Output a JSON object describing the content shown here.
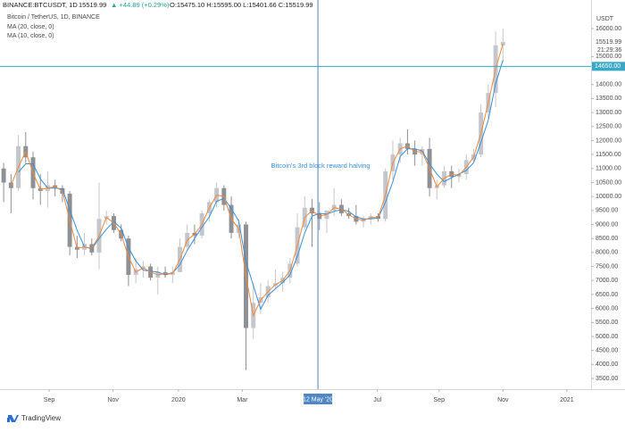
{
  "header": {
    "symbol": "BINANCE:BTCUSDT, 1D",
    "price": "15519.99",
    "change": "▲ +44.89 (+0.29%)",
    "ohlc": "O:15475.10 H:15595.00 L:15401.66 C:15519.99"
  },
  "chart_data": {
    "type": "candlestick",
    "title": "Bitcoin / TetherUS, 1D, BINANCE",
    "currency": "USDT",
    "up_color": "#c4c6cc",
    "down_color": "#8e9096",
    "open": [
      11000,
      10500,
      10300,
      11800,
      11400,
      10300,
      10200,
      10400,
      10300,
      10100,
      8200,
      8100,
      8300,
      8000,
      9200,
      9300,
      8800,
      8500,
      7200,
      7400,
      7500,
      7100,
      7300,
      7200,
      7300,
      8200,
      8700,
      8600,
      9400,
      9800,
      10300,
      9700,
      8700,
      9000,
      5300,
      6200,
      6400,
      6800,
      6900,
      7100,
      7600,
      8900,
      9600,
      9400,
      9200,
      9500,
      9700,
      9400,
      9300,
      9100,
      9200,
      9300,
      9200,
      10900,
      11500,
      11900,
      11700,
      11500,
      11700,
      10300,
      10400,
      10900,
      10700,
      10800,
      11300,
      11500,
      13000,
      13700,
      15400
    ],
    "high": [
      11200,
      10800,
      12200,
      12300,
      11600,
      10800,
      10900,
      10600,
      10400,
      10200,
      8600,
      8700,
      8500,
      10500,
      9500,
      9400,
      9000,
      8600,
      7800,
      7700,
      7600,
      7500,
      7500,
      7500,
      8500,
      9000,
      9000,
      9500,
      9900,
      10500,
      10400,
      10000,
      9200,
      9100,
      6900,
      6900,
      7000,
      7400,
      7300,
      7800,
      9400,
      10000,
      9900,
      9800,
      9500,
      10300,
      9900,
      9600,
      9700,
      9300,
      9400,
      9400,
      11000,
      12000,
      12100,
      12400,
      12000,
      11800,
      12100,
      10600,
      11100,
      11100,
      11000,
      11500,
      11700,
      13300,
      14000,
      15900,
      16000
    ],
    "low": [
      9800,
      9400,
      10200,
      11200,
      9900,
      9700,
      9600,
      10000,
      9800,
      7900,
      7800,
      7900,
      7900,
      7400,
      9000,
      8700,
      8400,
      6800,
      6900,
      7100,
      7000,
      6500,
      7100,
      6900,
      7300,
      8100,
      8300,
      8500,
      9100,
      9600,
      9500,
      8500,
      8500,
      3800,
      4900,
      5800,
      6200,
      6700,
      6600,
      6900,
      7500,
      8800,
      8200,
      8800,
      8700,
      9300,
      9300,
      9200,
      9000,
      8900,
      9000,
      9100,
      9100,
      10600,
      11200,
      11500,
      11100,
      11100,
      10000,
      9900,
      10300,
      10300,
      10500,
      10600,
      11200,
      11400,
      12800,
      13200,
      14800
    ],
    "close": [
      10500,
      10300,
      11800,
      11400,
      10300,
      10200,
      10400,
      10300,
      10100,
      8200,
      8100,
      8300,
      8000,
      9200,
      9300,
      8800,
      8500,
      7200,
      7400,
      7500,
      7100,
      7300,
      7200,
      7300,
      8200,
      8700,
      8600,
      9400,
      9800,
      10300,
      9700,
      8700,
      9000,
      5300,
      6200,
      6400,
      6800,
      6900,
      7100,
      7600,
      8900,
      9600,
      9400,
      9200,
      9500,
      9700,
      9400,
      9300,
      9100,
      9200,
      9300,
      9200,
      10900,
      11500,
      11900,
      11700,
      11500,
      11700,
      10300,
      10400,
      10900,
      10700,
      10800,
      11300,
      11500,
      13000,
      13700,
      15400,
      15520
    ],
    "series": [
      {
        "name": "MA (20, close, 0)",
        "color": "#3a8fd8",
        "values": [
          null,
          null,
          10870,
          11170,
          11170,
          10630,
          10300,
          10300,
          10270,
          9530,
          8800,
          8200,
          8130,
          8500,
          8830,
          9100,
          8870,
          8170,
          7700,
          7370,
          7330,
          7300,
          7200,
          7270,
          7570,
          8070,
          8500,
          8900,
          9270,
          9830,
          9930,
          9570,
          9130,
          7670,
          6830,
          5970,
          6470,
          6700,
          6930,
          7200,
          7870,
          8700,
          9300,
          9400,
          9370,
          9470,
          9530,
          9470,
          9270,
          9200,
          9200,
          9230,
          9800,
          10530,
          11430,
          11700,
          11700,
          11630,
          11170,
          10800,
          10530,
          10670,
          10800,
          10930,
          11200,
          11930,
          12730,
          14030,
          14870
        ]
      },
      {
        "name": "MA (10, close, 0)",
        "color": "#f0883a",
        "values": [
          null,
          10400,
          11050,
          11600,
          10850,
          10250,
          10300,
          10350,
          10200,
          9150,
          8150,
          8200,
          8150,
          8600,
          9250,
          9050,
          8650,
          7850,
          7300,
          7450,
          7300,
          7200,
          7250,
          7250,
          7750,
          8450,
          8650,
          9000,
          9600,
          10050,
          10000,
          9200,
          8850,
          7150,
          5750,
          6300,
          6600,
          6850,
          7000,
          7350,
          8250,
          9250,
          9500,
          9300,
          9350,
          9600,
          9550,
          9350,
          9200,
          9150,
          9250,
          9250,
          10050,
          11200,
          11700,
          11800,
          11600,
          11600,
          11000,
          10350,
          10650,
          10800,
          10750,
          11050,
          11400,
          12250,
          13350,
          14550,
          15460
        ]
      }
    ],
    "xlim": [
      -0.5,
      80
    ],
    "xticks": [
      {
        "value": 6.2,
        "label": "Sep"
      },
      {
        "value": 14.9,
        "label": "Nov"
      },
      {
        "value": 23.8,
        "label": "2020"
      },
      {
        "value": 32.5,
        "label": "Mar"
      },
      {
        "value": 50.9,
        "label": "Jul"
      },
      {
        "value": 59.3,
        "label": "Sep"
      },
      {
        "value": 68,
        "label": "Nov"
      },
      {
        "value": 76.7,
        "label": "2021"
      }
    ],
    "ylim": [
      3117,
      16765
    ],
    "yticks": [
      {
        "value": 3500,
        "label": "3500.00"
      },
      {
        "value": 4000,
        "label": "4000.00"
      },
      {
        "value": 4500,
        "label": "4500.00"
      },
      {
        "value": 5000,
        "label": "5000.00"
      },
      {
        "value": 5500,
        "label": "5500.00"
      },
      {
        "value": 6000,
        "label": "6000.00"
      },
      {
        "value": 6500,
        "label": "6500.00"
      },
      {
        "value": 7000,
        "label": "7000.00"
      },
      {
        "value": 7500,
        "label": "7500.00"
      },
      {
        "value": 8000,
        "label": "8000.00"
      },
      {
        "value": 8500,
        "label": "8500.00"
      },
      {
        "value": 9000,
        "label": "9000.00"
      },
      {
        "value": 9500,
        "label": "9500.00"
      },
      {
        "value": 10000,
        "label": "10000.00"
      },
      {
        "value": 10500,
        "label": "10500.00"
      },
      {
        "value": 11000,
        "label": "11000.00"
      },
      {
        "value": 11500,
        "label": "11500.00"
      },
      {
        "value": 12000,
        "label": "12000.00"
      },
      {
        "value": 12500,
        "label": "12500.00"
      },
      {
        "value": 13000,
        "label": "13000.00"
      },
      {
        "value": 13500,
        "label": "13500.00"
      },
      {
        "value": 14000,
        "label": "14000.00"
      },
      {
        "value": 15000,
        "label": "15000.00"
      },
      {
        "value": 16000,
        "label": "16000.00"
      }
    ],
    "hline": {
      "value": 14650,
      "label": "14650.00",
      "color": "#37a9c6"
    },
    "vline": {
      "value": 42.8,
      "label": "12 May '20",
      "color": "#4f86c6"
    },
    "annotation": "Bitcoin's 3rd block reward halving",
    "last_price": {
      "value": 15519.99,
      "label": "15519.99"
    },
    "countdown": "21:29:36"
  },
  "footer": "TradingView"
}
